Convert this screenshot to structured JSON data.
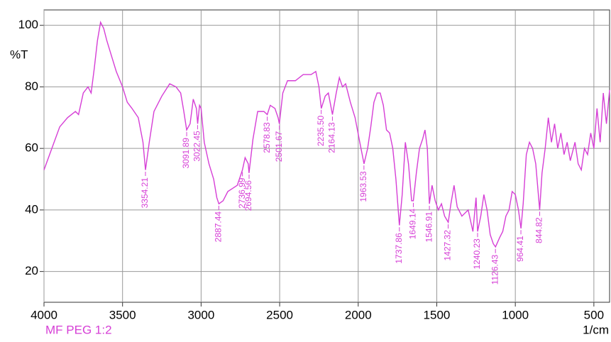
{
  "chart_data": {
    "type": "line",
    "x_label": "1/cm",
    "y_label": "%T",
    "xlim": [
      4000,
      400
    ],
    "ylim": [
      10,
      105
    ],
    "xticks": [
      4000,
      3500,
      3000,
      2500,
      2000,
      1500,
      1000,
      500
    ],
    "yticks": [
      20,
      40,
      60,
      80,
      100
    ],
    "grid": true,
    "series": [
      {
        "name": "MF PEG 1:2",
        "color": "#d63fd6",
        "x": [
          4000,
          3950,
          3900,
          3850,
          3800,
          3780,
          3750,
          3720,
          3700,
          3680,
          3660,
          3640,
          3620,
          3600,
          3570,
          3540,
          3500,
          3470,
          3440,
          3400,
          3370,
          3354,
          3330,
          3300,
          3250,
          3200,
          3160,
          3130,
          3110,
          3092,
          3070,
          3050,
          3030,
          3022,
          3010,
          3000,
          2980,
          2950,
          2920,
          2900,
          2887,
          2860,
          2830,
          2800,
          2770,
          2750,
          2737,
          2720,
          2700,
          2695,
          2670,
          2640,
          2600,
          2579,
          2560,
          2530,
          2510,
          2502,
          2480,
          2450,
          2400,
          2350,
          2300,
          2270,
          2250,
          2235,
          2210,
          2190,
          2164,
          2140,
          2120,
          2100,
          2080,
          2050,
          2020,
          1990,
          1963,
          1940,
          1920,
          1900,
          1880,
          1860,
          1840,
          1820,
          1800,
          1780,
          1760,
          1738,
          1720,
          1700,
          1680,
          1660,
          1649,
          1630,
          1610,
          1590,
          1575,
          1560,
          1547,
          1530,
          1510,
          1490,
          1470,
          1450,
          1427,
          1410,
          1390,
          1370,
          1340,
          1300,
          1270,
          1250,
          1240,
          1220,
          1200,
          1180,
          1160,
          1140,
          1126,
          1100,
          1080,
          1060,
          1040,
          1020,
          1000,
          980,
          964,
          950,
          930,
          910,
          890,
          870,
          845,
          830,
          810,
          790,
          770,
          750,
          730,
          710,
          690,
          670,
          650,
          620,
          600,
          580,
          560,
          540,
          520,
          500,
          480,
          460,
          440,
          420,
          400
        ],
        "values": [
          53,
          60,
          67,
          70,
          72,
          71,
          78,
          80,
          78,
          86,
          95,
          101,
          99,
          95,
          90,
          85,
          80,
          75,
          73,
          70,
          62,
          53,
          62,
          72,
          77,
          81,
          80,
          78,
          72,
          66,
          68,
          76,
          73,
          68,
          74,
          73,
          62,
          55,
          50,
          44,
          42,
          43,
          46,
          47,
          48,
          51,
          53,
          57,
          55,
          52,
          63,
          72,
          72,
          71,
          74,
          73,
          70,
          68,
          78,
          82,
          82,
          84,
          84,
          85,
          80,
          73,
          77,
          78,
          71,
          78,
          83,
          80,
          81,
          75,
          70,
          62,
          55,
          60,
          67,
          75,
          78,
          78,
          74,
          66,
          65,
          60,
          50,
          35,
          45,
          62,
          55,
          43,
          43,
          52,
          60,
          63,
          66,
          60,
          42,
          48,
          43,
          40,
          42,
          38,
          36,
          42,
          48,
          41,
          38,
          40,
          33,
          44,
          33,
          38,
          45,
          40,
          32,
          29,
          28,
          31,
          33,
          38,
          40,
          46,
          45,
          40,
          34,
          42,
          58,
          62,
          60,
          55,
          40,
          52,
          60,
          70,
          62,
          68,
          60,
          65,
          58,
          62,
          56,
          62,
          55,
          53,
          60,
          58,
          65,
          60,
          73,
          62,
          78,
          68,
          79
        ]
      }
    ],
    "peaks": [
      3354.21,
      3091.89,
      3022.45,
      2887.44,
      2736.99,
      2694.56,
      2578.83,
      2501.67,
      2235.5,
      2164.13,
      1963.53,
      1737.86,
      1649.14,
      1546.91,
      1427.32,
      1240.23,
      1126.43,
      964.41,
      844.82
    ],
    "peak_labels": [
      "3354.21",
      "3091.89",
      "3022.45",
      "2887.44",
      "2736.99",
      "2694.56",
      "2578.83",
      "2501.67",
      "2235.50",
      "2164.13",
      "1963.53",
      "1737.86",
      "1649.14",
      "1546.91",
      "1427.32",
      "1240.23",
      "1126.43",
      "964.41",
      "844.82"
    ]
  }
}
